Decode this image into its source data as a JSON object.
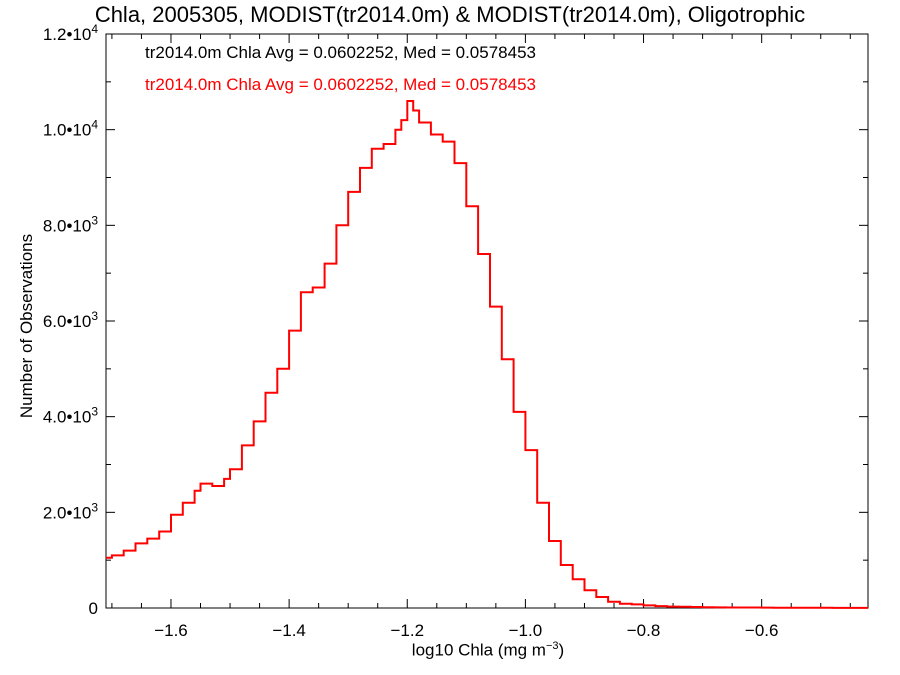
{
  "chart_data": {
    "type": "line",
    "style": "step-histogram",
    "title": "Chla, 2005305, MODIST(tr2014.0m) & MODIST(tr2014.0m), Oligotrophic",
    "xlabel_main": "log10 Chla (mg m",
    "xlabel_sup": "−3",
    "xlabel_end": ")",
    "ylabel": "Number of Observations",
    "xlim": [
      -1.71,
      -0.42
    ],
    "ylim": [
      0,
      12000
    ],
    "grid": false,
    "legend_placement": "top-left",
    "x_ticks": [
      {
        "value": -1.6,
        "label": "−1.6"
      },
      {
        "value": -1.4,
        "label": "−1.4"
      },
      {
        "value": -1.2,
        "label": "−1.2"
      },
      {
        "value": -1.0,
        "label": "−1.0"
      },
      {
        "value": -0.8,
        "label": "−0.8"
      },
      {
        "value": -0.6,
        "label": "−0.6"
      }
    ],
    "y_ticks": [
      {
        "value": 0,
        "mantissa": "0",
        "exp": ""
      },
      {
        "value": 2000,
        "mantissa": "2.0•10",
        "exp": "3"
      },
      {
        "value": 4000,
        "mantissa": "4.0•10",
        "exp": "3"
      },
      {
        "value": 6000,
        "mantissa": "6.0•10",
        "exp": "3"
      },
      {
        "value": 8000,
        "mantissa": "8.0•10",
        "exp": "3"
      },
      {
        "value": 10000,
        "mantissa": "1.0•10",
        "exp": "4"
      },
      {
        "value": 12000,
        "mantissa": "1.2•10",
        "exp": "4"
      }
    ],
    "series": [
      {
        "name": "tr2014.0m Chla Avg = 0.0602252, Med = 0.0578453",
        "color": "#ff0000",
        "x": [
          -1.71,
          -1.7,
          -1.68,
          -1.66,
          -1.64,
          -1.62,
          -1.6,
          -1.58,
          -1.56,
          -1.55,
          -1.53,
          -1.51,
          -1.5,
          -1.48,
          -1.46,
          -1.44,
          -1.42,
          -1.4,
          -1.38,
          -1.36,
          -1.34,
          -1.32,
          -1.3,
          -1.28,
          -1.26,
          -1.24,
          -1.22,
          -1.21,
          -1.2,
          -1.19,
          -1.18,
          -1.16,
          -1.14,
          -1.12,
          -1.1,
          -1.08,
          -1.06,
          -1.04,
          -1.02,
          -1.0,
          -0.98,
          -0.96,
          -0.94,
          -0.92,
          -0.9,
          -0.88,
          -0.86,
          -0.84,
          -0.82,
          -0.8,
          -0.78,
          -0.76,
          -0.74,
          -0.72,
          -0.7,
          -0.68,
          -0.66,
          -0.64,
          -0.62,
          -0.6,
          -0.58,
          -0.56,
          -0.54,
          -0.52,
          -0.5,
          -0.48,
          -0.46,
          -0.44,
          -0.42
        ],
        "y": [
          1050,
          1100,
          1200,
          1350,
          1450,
          1600,
          1950,
          2200,
          2450,
          2600,
          2550,
          2700,
          2900,
          3400,
          3900,
          4500,
          5000,
          5800,
          6600,
          6700,
          7200,
          8000,
          8700,
          9200,
          9600,
          9700,
          10000,
          10200,
          10600,
          10400,
          10150,
          9900,
          9750,
          9300,
          8400,
          7400,
          6300,
          5200,
          4100,
          3300,
          2200,
          1400,
          900,
          600,
          370,
          230,
          130,
          90,
          75,
          55,
          40,
          30,
          25,
          20,
          15,
          12,
          10,
          10,
          10,
          8,
          6,
          5,
          5,
          4,
          4,
          3,
          3,
          3,
          3
        ]
      }
    ]
  },
  "legend": [
    {
      "text": "tr2014.0m Chla Avg = 0.0602252, Med = 0.0578453",
      "color": "#000000"
    },
    {
      "text": "tr2014.0m Chla Avg = 0.0602252, Med = 0.0578453",
      "color": "#ff0000"
    }
  ]
}
